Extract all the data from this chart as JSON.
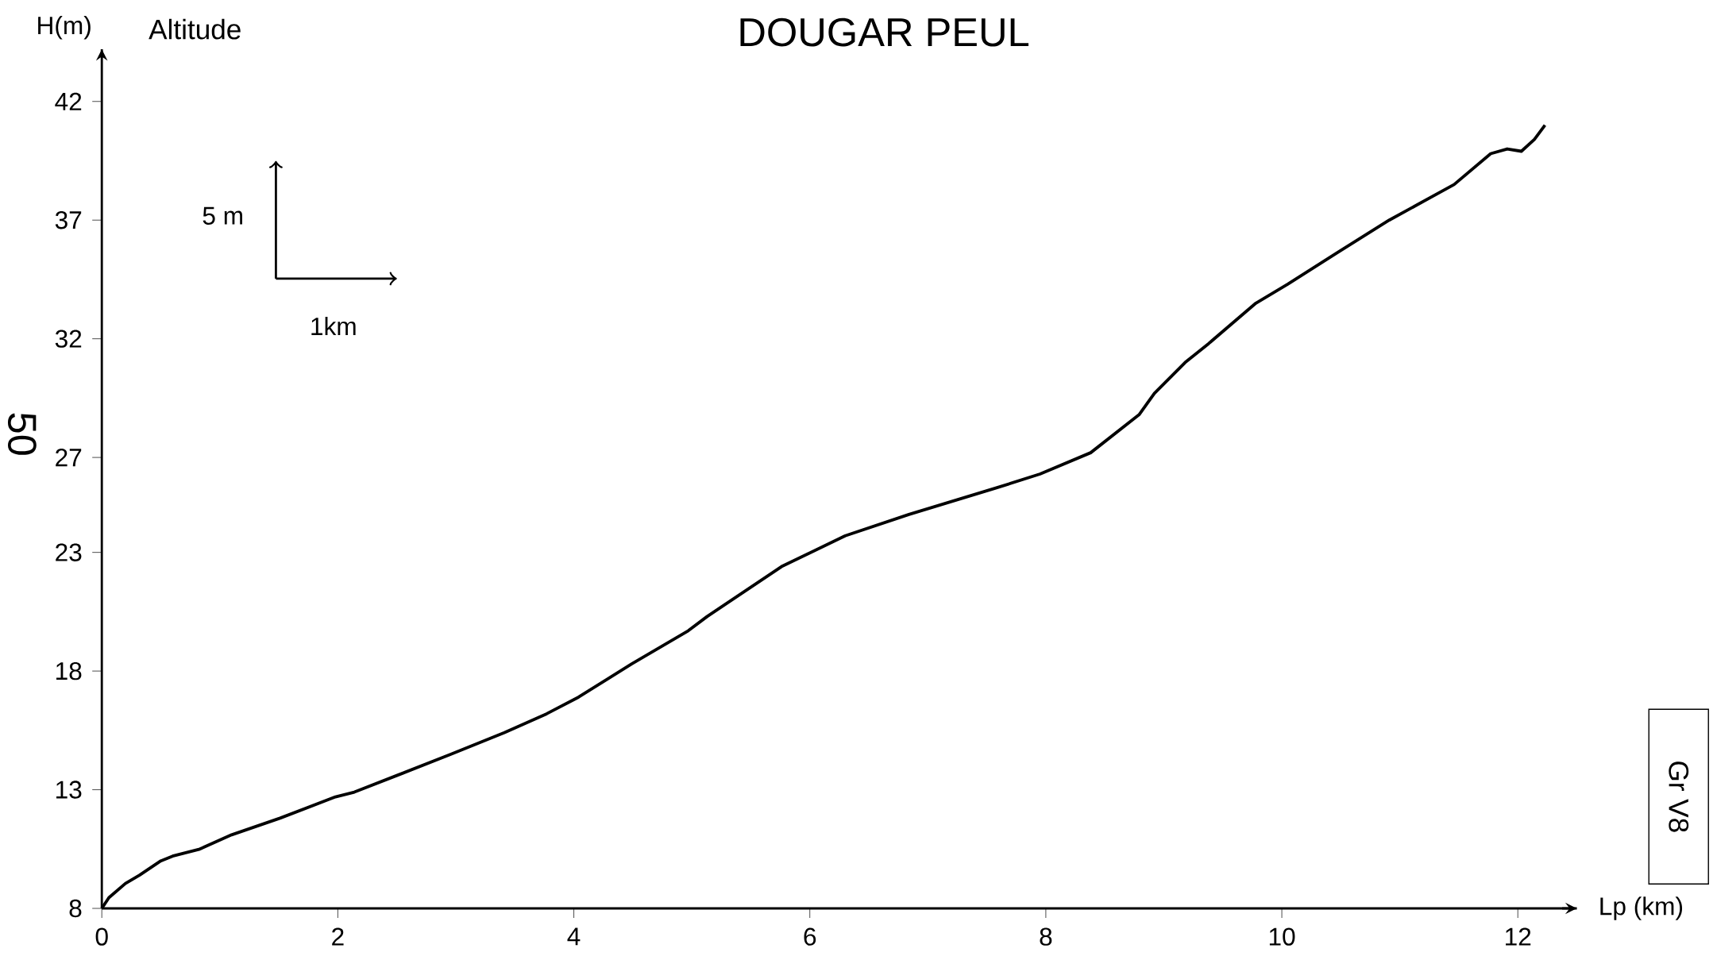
{
  "chart_data": {
    "type": "line",
    "title": "DOUGAR PEUL",
    "xlabel": "Lp (km)",
    "ylabel": "H(m)",
    "annotations": [
      "Altitude",
      "5 m",
      "1km",
      "50",
      "Gr V8"
    ],
    "x": [
      0,
      0.06,
      0.2,
      0.32,
      0.5,
      0.6,
      0.83,
      1.1,
      1.51,
      1.98,
      2.14,
      2.5,
      2.96,
      3.41,
      3.77,
      4.04,
      4.49,
      4.97,
      5.13,
      5.76,
      6.3,
      6.84,
      7.57,
      7.95,
      8.38,
      8.79,
      8.92,
      9.18,
      9.38,
      9.78,
      10.05,
      10.46,
      10.91,
      11.46,
      11.77,
      11.91,
      12.03,
      12.14,
      12.23
    ],
    "values": [
      8,
      8.45,
      9.05,
      9.4,
      10.0,
      10.2,
      10.5,
      11.1,
      11.8,
      12.7,
      12.9,
      13.6,
      14.5,
      15.4,
      16.2,
      16.9,
      18.3,
      19.7,
      20.3,
      22.4,
      23.7,
      24.6,
      25.7,
      26.3,
      27.2,
      28.8,
      29.7,
      31.0,
      31.8,
      33.5,
      34.3,
      35.6,
      37.0,
      38.5,
      39.8,
      40.0,
      39.9,
      40.4,
      41.0
    ],
    "color": "#000000",
    "line_style": "solid",
    "xlim": [
      0,
      12.5
    ],
    "ylim": [
      8,
      44.2
    ],
    "xticks": [
      0,
      2,
      4,
      6,
      8,
      10,
      12
    ],
    "yticks": [
      8,
      13,
      18,
      23,
      27,
      32,
      37,
      42
    ]
  }
}
